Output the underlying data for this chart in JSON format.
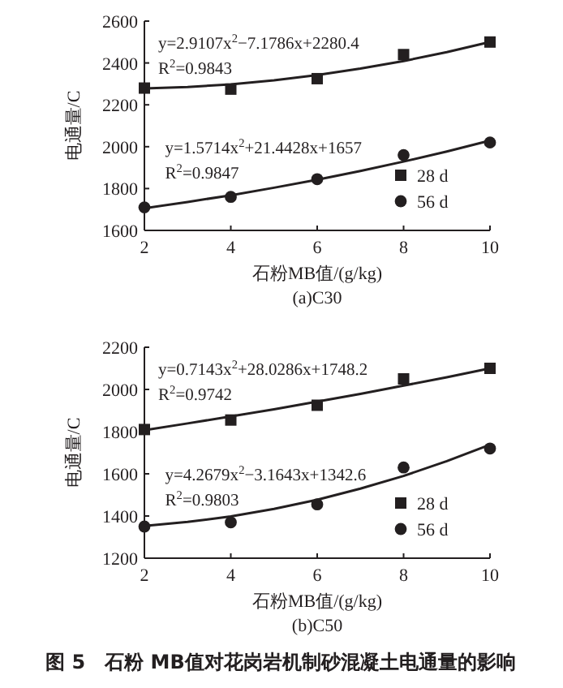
{
  "chart_data": [
    {
      "type": "scatter",
      "title": "(a)C30",
      "xlabel": "石粉MB值/(g/kg)",
      "ylabel": "电通量/C",
      "xlim": [
        2,
        10
      ],
      "xticks": [
        2,
        4,
        6,
        8,
        10
      ],
      "ylim": [
        1600,
        2600
      ],
      "yticks": [
        1600,
        1800,
        2000,
        2200,
        2400,
        2600
      ],
      "legend": "right",
      "grid": false,
      "series": [
        {
          "name": "28 d",
          "type": "scatter",
          "marker": "square",
          "color": "#231f20",
          "x": [
            2,
            4,
            6,
            8,
            10
          ],
          "values": [
            2280,
            2275,
            2325,
            2440,
            2500
          ]
        },
        {
          "name": "56 d",
          "type": "scatter",
          "marker": "circle",
          "color": "#231f20",
          "x": [
            2,
            4,
            6,
            8,
            10
          ],
          "values": [
            1710,
            1760,
            1845,
            1960,
            2020
          ]
        },
        {
          "type": "line",
          "marker": "none",
          "color": "#231f20",
          "x": [
            2,
            3,
            4,
            5,
            6,
            7,
            8,
            9,
            10
          ],
          "values": [
            2278,
            2285,
            2298,
            2317,
            2342,
            2373,
            2409,
            2452,
            2500
          ]
        },
        {
          "type": "line",
          "marker": "none",
          "color": "#231f20",
          "x": [
            2,
            3,
            4,
            5,
            6,
            7,
            8,
            9,
            10
          ],
          "values": [
            1706,
            1736,
            1768,
            1804,
            1842,
            1884,
            1929,
            1977,
            2029
          ]
        }
      ],
      "annotations": [
        "y=2.9107x$^{2}$−7.1786x+2280.4",
        "R$^{2}$=0.9843",
        "y=1.5714x$^{2}$+21.4428x+1657",
        "R$^{2}$=0.9847"
      ]
    },
    {
      "type": "scatter",
      "title": "(b)C50",
      "xlabel": "石粉MB值/(g/kg)",
      "ylabel": "电通量/C",
      "xlim": [
        2,
        10
      ],
      "xticks": [
        2,
        4,
        6,
        8,
        10
      ],
      "ylim": [
        1200,
        2200
      ],
      "yticks": [
        1200,
        1400,
        1600,
        1800,
        2000,
        2200
      ],
      "legend": "right",
      "grid": false,
      "series": [
        {
          "name": "28 d",
          "type": "scatter",
          "marker": "square",
          "color": "#231f20",
          "x": [
            2,
            4,
            6,
            8,
            10
          ],
          "values": [
            1810,
            1855,
            1925,
            2050,
            2100
          ]
        },
        {
          "name": "56 d",
          "type": "scatter",
          "marker": "circle",
          "color": "#231f20",
          "x": [
            2,
            4,
            6,
            8,
            10
          ],
          "values": [
            1350,
            1370,
            1455,
            1630,
            1720
          ]
        },
        {
          "type": "line",
          "marker": "none",
          "color": "#231f20",
          "x": [
            2,
            3,
            4,
            5,
            6,
            7,
            8,
            9,
            10
          ],
          "values": [
            1807,
            1839,
            1872,
            1906,
            1942,
            1979,
            2018,
            2058,
            2100
          ]
        },
        {
          "type": "line",
          "marker": "none",
          "color": "#231f20",
          "x": [
            2,
            3,
            4,
            5,
            6,
            7,
            8,
            9,
            10
          ],
          "values": [
            1353,
            1372,
            1398,
            1434,
            1477,
            1530,
            1590,
            1660,
            1738
          ]
        }
      ],
      "annotations": [
        "y=0.7143x$^{2}$+28.0286x+1748.2",
        "R$^{2}$=0.9742",
        "y=4.2679x$^{2}$−3.1643x+1342.6",
        "R$^{2}$=0.9803",
        "图 5　石粉 MB值对花岗岩机制砂混凝土电通量的影响"
      ]
    }
  ]
}
